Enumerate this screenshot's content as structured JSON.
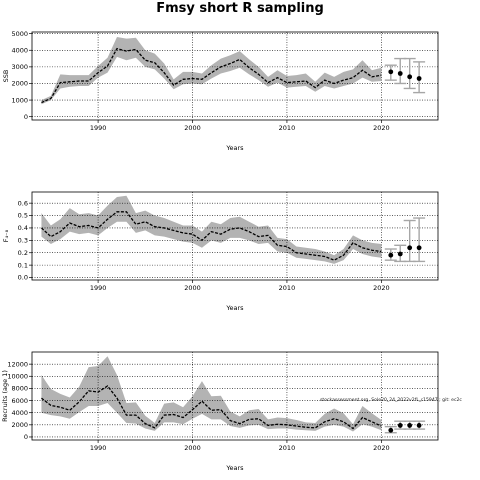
{
  "figure": {
    "title": "Fmsy short R sampling",
    "annotation": "stockassessment.org, Sole20_24_2022v2fL_r15947 ; git: ec2c"
  },
  "chart_data": [
    {
      "type": "line",
      "title": "",
      "xlabel": "Years",
      "ylabel": "SSB",
      "xlim": [
        1983,
        2026
      ],
      "ylim": [
        -200,
        5100
      ],
      "xticks": [
        1990,
        2000,
        2010,
        2020
      ],
      "yticks": [
        0,
        1000,
        2000,
        3000,
        4000,
        5000
      ],
      "ytick_labels": [
        "0",
        "1000",
        "2000",
        "3000",
        "4000",
        "5000"
      ],
      "grid": "dotted",
      "years": [
        1984,
        1985,
        1986,
        1987,
        1988,
        1989,
        1990,
        1991,
        1992,
        1993,
        1994,
        1995,
        1996,
        1997,
        1998,
        1999,
        2000,
        2001,
        2002,
        2003,
        2004,
        2005,
        2006,
        2007,
        2008,
        2009,
        2010,
        2011,
        2012,
        2013,
        2014,
        2015,
        2016,
        2017,
        2018,
        2019,
        2020
      ],
      "estimate": [
        850,
        1100,
        2050,
        2100,
        2150,
        2150,
        2650,
        3050,
        4100,
        3950,
        4050,
        3400,
        3250,
        2650,
        1900,
        2250,
        2300,
        2250,
        2650,
        3000,
        3200,
        3450,
        2950,
        2550,
        2050,
        2350,
        2050,
        2100,
        2150,
        1750,
        2200,
        2000,
        2200,
        2350,
        2800,
        2400,
        2500
      ],
      "lower": [
        750,
        1000,
        1700,
        1800,
        1850,
        1850,
        2350,
        2650,
        3600,
        3400,
        3550,
        3000,
        2850,
        2300,
        1650,
        1950,
        2000,
        1950,
        2300,
        2600,
        2750,
        2950,
        2550,
        2200,
        1800,
        2050,
        1750,
        1800,
        1850,
        1500,
        1850,
        1700,
        1850,
        2000,
        2350,
        2100,
        2150
      ],
      "upper": [
        1000,
        1250,
        2550,
        2500,
        2500,
        2500,
        3050,
        3550,
        4800,
        4700,
        4750,
        4000,
        3800,
        3200,
        2250,
        2700,
        2700,
        2600,
        3100,
        3500,
        3700,
        3950,
        3450,
        3000,
        2400,
        2800,
        2450,
        2500,
        2600,
        2100,
        2650,
        2400,
        2700,
        2850,
        3400,
        2800,
        2950
      ],
      "forecast": {
        "years": [
          2021,
          2022,
          2023,
          2024
        ],
        "median": [
          2700,
          2600,
          2400,
          2300
        ],
        "lower": [
          2200,
          2000,
          1700,
          1450
        ],
        "upper": [
          3100,
          3500,
          3500,
          3300
        ]
      }
    },
    {
      "type": "line",
      "title": "",
      "xlabel": "Years",
      "ylabel": "F₄₋₈",
      "xlim": [
        1983,
        2026
      ],
      "ylim": [
        -0.02,
        0.69
      ],
      "xticks": [
        1990,
        2000,
        2010,
        2020
      ],
      "yticks": [
        0.0,
        0.1,
        0.2,
        0.3,
        0.4,
        0.5,
        0.6
      ],
      "ytick_labels": [
        "0.0",
        "0.1",
        "0.2",
        "0.3",
        "0.4",
        "0.5",
        "0.6"
      ],
      "grid": "dotted",
      "years": [
        1984,
        1985,
        1986,
        1987,
        1988,
        1989,
        1990,
        1991,
        1992,
        1993,
        1994,
        1995,
        1996,
        1997,
        1998,
        1999,
        2000,
        2001,
        2002,
        2003,
        2004,
        2005,
        2006,
        2007,
        2008,
        2009,
        2010,
        2011,
        2012,
        2013,
        2014,
        2015,
        2016,
        2017,
        2018,
        2019,
        2020
      ],
      "estimate": [
        0.4,
        0.33,
        0.37,
        0.44,
        0.41,
        0.42,
        0.4,
        0.47,
        0.53,
        0.53,
        0.43,
        0.45,
        0.41,
        0.4,
        0.38,
        0.36,
        0.35,
        0.3,
        0.37,
        0.35,
        0.39,
        0.4,
        0.37,
        0.33,
        0.34,
        0.26,
        0.25,
        0.2,
        0.19,
        0.18,
        0.17,
        0.14,
        0.18,
        0.28,
        0.24,
        0.22,
        0.21
      ],
      "lower": [
        0.33,
        0.27,
        0.31,
        0.37,
        0.35,
        0.36,
        0.34,
        0.4,
        0.45,
        0.45,
        0.36,
        0.38,
        0.34,
        0.33,
        0.31,
        0.29,
        0.28,
        0.24,
        0.3,
        0.28,
        0.32,
        0.32,
        0.3,
        0.27,
        0.28,
        0.21,
        0.2,
        0.16,
        0.15,
        0.14,
        0.13,
        0.11,
        0.14,
        0.23,
        0.19,
        0.17,
        0.16
      ],
      "upper": [
        0.52,
        0.42,
        0.47,
        0.56,
        0.51,
        0.52,
        0.5,
        0.58,
        0.65,
        0.66,
        0.52,
        0.54,
        0.5,
        0.48,
        0.45,
        0.42,
        0.42,
        0.37,
        0.45,
        0.43,
        0.48,
        0.49,
        0.45,
        0.41,
        0.42,
        0.32,
        0.31,
        0.25,
        0.24,
        0.23,
        0.21,
        0.18,
        0.23,
        0.34,
        0.3,
        0.28,
        0.27
      ],
      "forecast": {
        "years": [
          2021,
          2022,
          2023,
          2024
        ],
        "median": [
          0.18,
          0.19,
          0.24,
          0.24
        ],
        "lower": [
          0.14,
          0.13,
          0.13,
          0.13
        ],
        "upper": [
          0.23,
          0.26,
          0.46,
          0.48
        ]
      }
    },
    {
      "type": "line",
      "title": "",
      "xlabel": "Years",
      "ylabel": "Recruits (age 1)",
      "xlim": [
        1983,
        2026
      ],
      "ylim": [
        -500,
        14000
      ],
      "xticks": [
        1990,
        2000,
        2010,
        2020
      ],
      "yticks": [
        0,
        2000,
        4000,
        6000,
        8000,
        10000,
        12000
      ],
      "ytick_labels": [
        "0",
        "2000",
        "4000",
        "6000",
        "8000",
        "10000",
        "12000"
      ],
      "grid": "dotted",
      "years": [
        1984,
        1985,
        1986,
        1987,
        1988,
        1989,
        1990,
        1991,
        1992,
        1993,
        1994,
        1995,
        1996,
        1997,
        1998,
        1999,
        2000,
        2001,
        2002,
        2003,
        2004,
        2005,
        2006,
        2007,
        2008,
        2009,
        2010,
        2011,
        2012,
        2013,
        2014,
        2015,
        2016,
        2017,
        2018,
        2019,
        2020
      ],
      "estimate": [
        6400,
        5200,
        4900,
        4400,
        5800,
        7600,
        7400,
        8400,
        6400,
        3600,
        3600,
        2200,
        1500,
        3600,
        3700,
        3200,
        4500,
        5900,
        4400,
        4500,
        2700,
        2200,
        2900,
        3000,
        1900,
        2100,
        2000,
        1800,
        1600,
        1500,
        2500,
        3000,
        2500,
        1400,
        3200,
        2500,
        1800
      ],
      "lower": [
        4000,
        3600,
        3400,
        3000,
        4100,
        5100,
        5100,
        5600,
        4000,
        2300,
        2200,
        1400,
        1000,
        2400,
        2400,
        2100,
        3000,
        3800,
        2900,
        2900,
        1800,
        1500,
        1900,
        2000,
        1300,
        1400,
        1400,
        1200,
        1100,
        1000,
        1700,
        2000,
        1700,
        900,
        2100,
        1700,
        1100
      ],
      "upper": [
        10200,
        7900,
        7100,
        6500,
        8300,
        11500,
        11700,
        13300,
        10200,
        5600,
        5700,
        3500,
        2300,
        5500,
        5700,
        4900,
        6700,
        9200,
        6700,
        6800,
        4200,
        3400,
        4400,
        4600,
        2900,
        3200,
        3100,
        2800,
        2400,
        2300,
        3800,
        4700,
        3900,
        2100,
        5100,
        3900,
        2800
      ],
      "forecast": {
        "years": [
          2021,
          2022,
          2023,
          2024
        ],
        "median": [
          1100,
          1900,
          1900,
          1900
        ],
        "lower": [
          700,
          1300,
          1300,
          1300
        ],
        "upper": [
          1700,
          2600,
          2600,
          2600
        ]
      }
    }
  ]
}
